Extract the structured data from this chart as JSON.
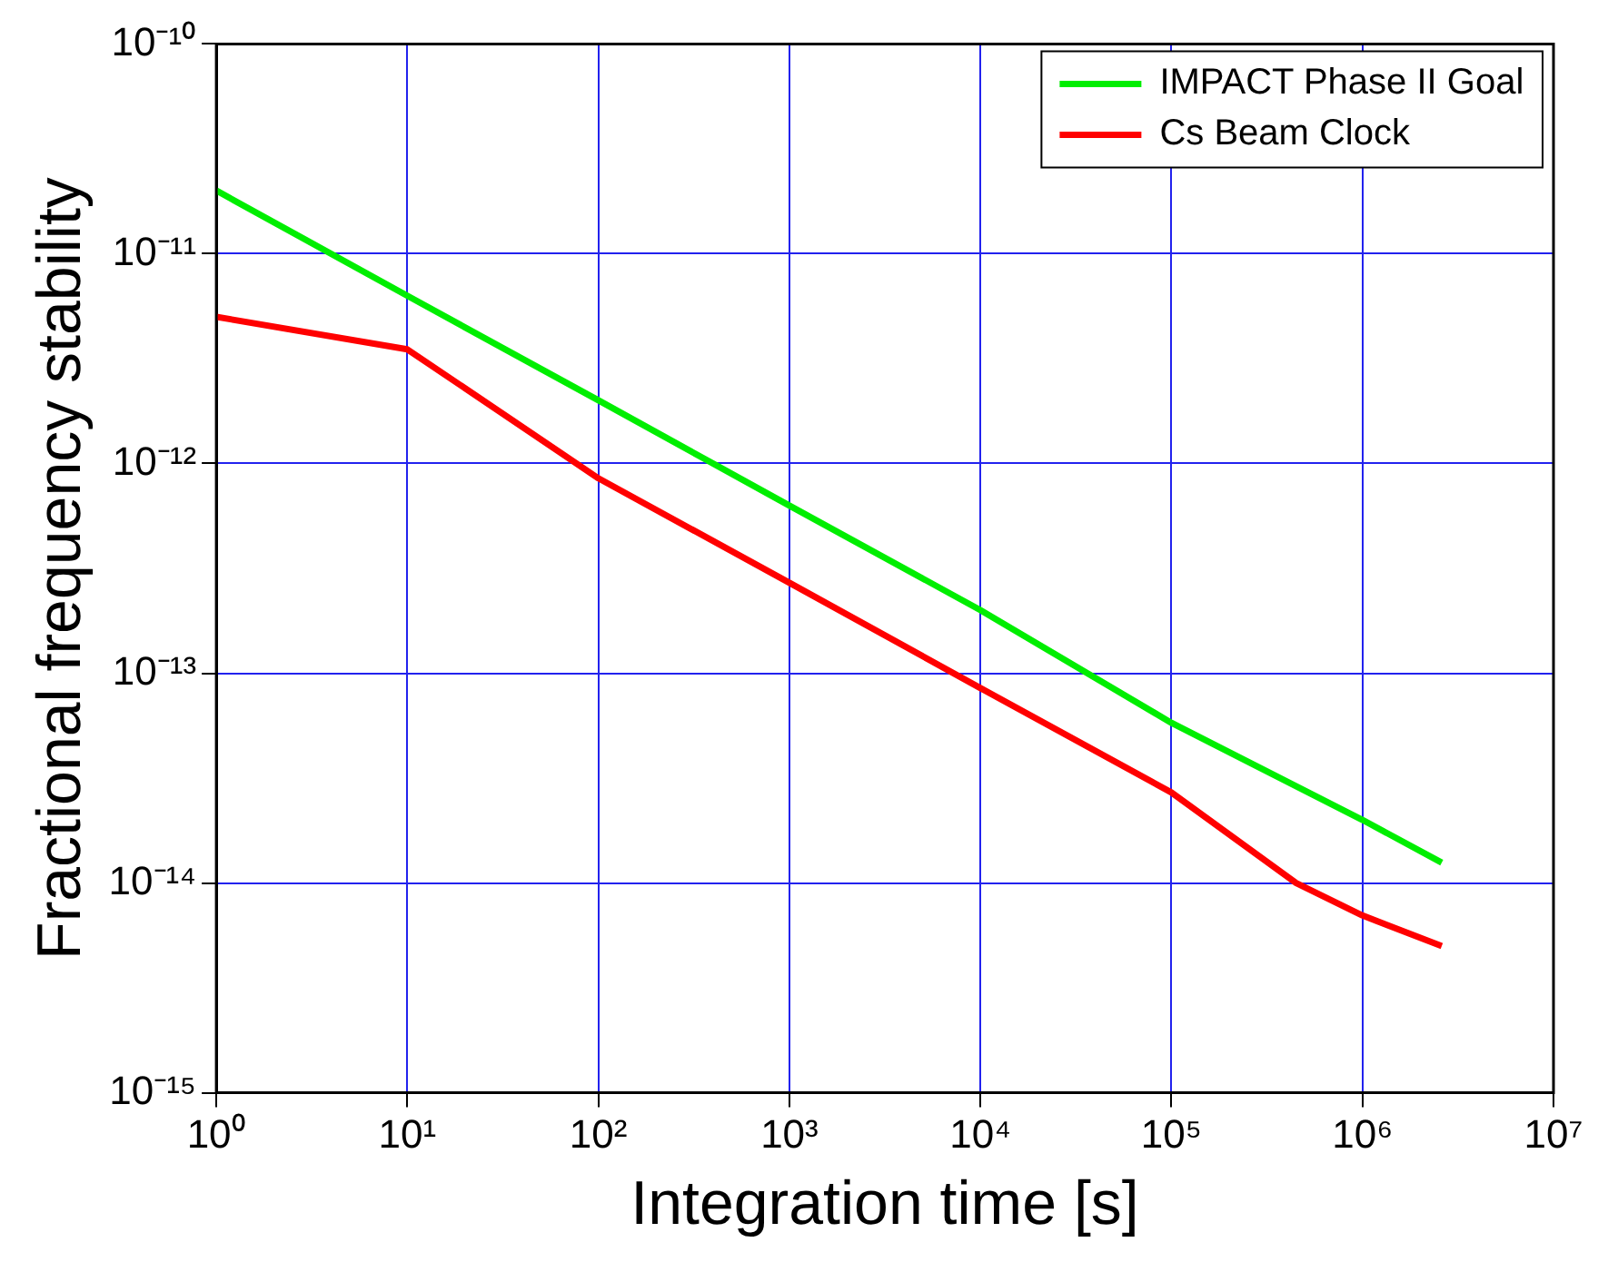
{
  "chart_data": {
    "type": "line",
    "xlabel": "Integration time [s]",
    "ylabel": "Fractional frequency stability",
    "log": "xy",
    "grid": true,
    "legend": "top right",
    "marker": "none",
    "line_style": "solid",
    "xlim": [
      1,
      10000000
    ],
    "ylim": [
      1e-15,
      1e-10
    ],
    "xticks": [
      {
        "value": 1,
        "label": "10⁰"
      },
      {
        "value": 10,
        "label": "10¹"
      },
      {
        "value": 100,
        "label": "10²"
      },
      {
        "value": 1000,
        "label": "10³"
      },
      {
        "value": 10000,
        "label": "10⁴"
      },
      {
        "value": 100000,
        "label": "10⁵"
      },
      {
        "value": 1000000,
        "label": "10⁶"
      },
      {
        "value": 10000000,
        "label": "10⁷"
      }
    ],
    "yticks": [
      {
        "value": 1e-15,
        "label": "10⁻¹⁵"
      },
      {
        "value": 1e-14,
        "label": "10⁻¹⁴"
      },
      {
        "value": 1e-13,
        "label": "10⁻¹³"
      },
      {
        "value": 1e-12,
        "label": "10⁻¹²"
      },
      {
        "value": 1e-11,
        "label": "10⁻¹¹"
      },
      {
        "value": 1e-10,
        "label": "10⁻¹⁰"
      }
    ],
    "series": [
      {
        "name": "IMPACT Phase II Goal",
        "color": "#00ee00",
        "x": [
          1,
          10,
          100,
          1000,
          10000,
          100000,
          1000000,
          2600000
        ],
        "values": [
          2e-11,
          6.3e-12,
          2e-12,
          6.3e-13,
          2e-13,
          5.8e-14,
          2e-14,
          1.25e-14
        ]
      },
      {
        "name": "Cs Beam Clock",
        "color": "#ff0000",
        "x": [
          1,
          10,
          100,
          1000,
          10000,
          100000,
          450000,
          1000000,
          2600000
        ],
        "values": [
          5e-12,
          3.5e-12,
          8.5e-13,
          2.7e-13,
          8.5e-14,
          2.7e-14,
          1e-14,
          7e-15,
          5e-15
        ]
      }
    ]
  }
}
